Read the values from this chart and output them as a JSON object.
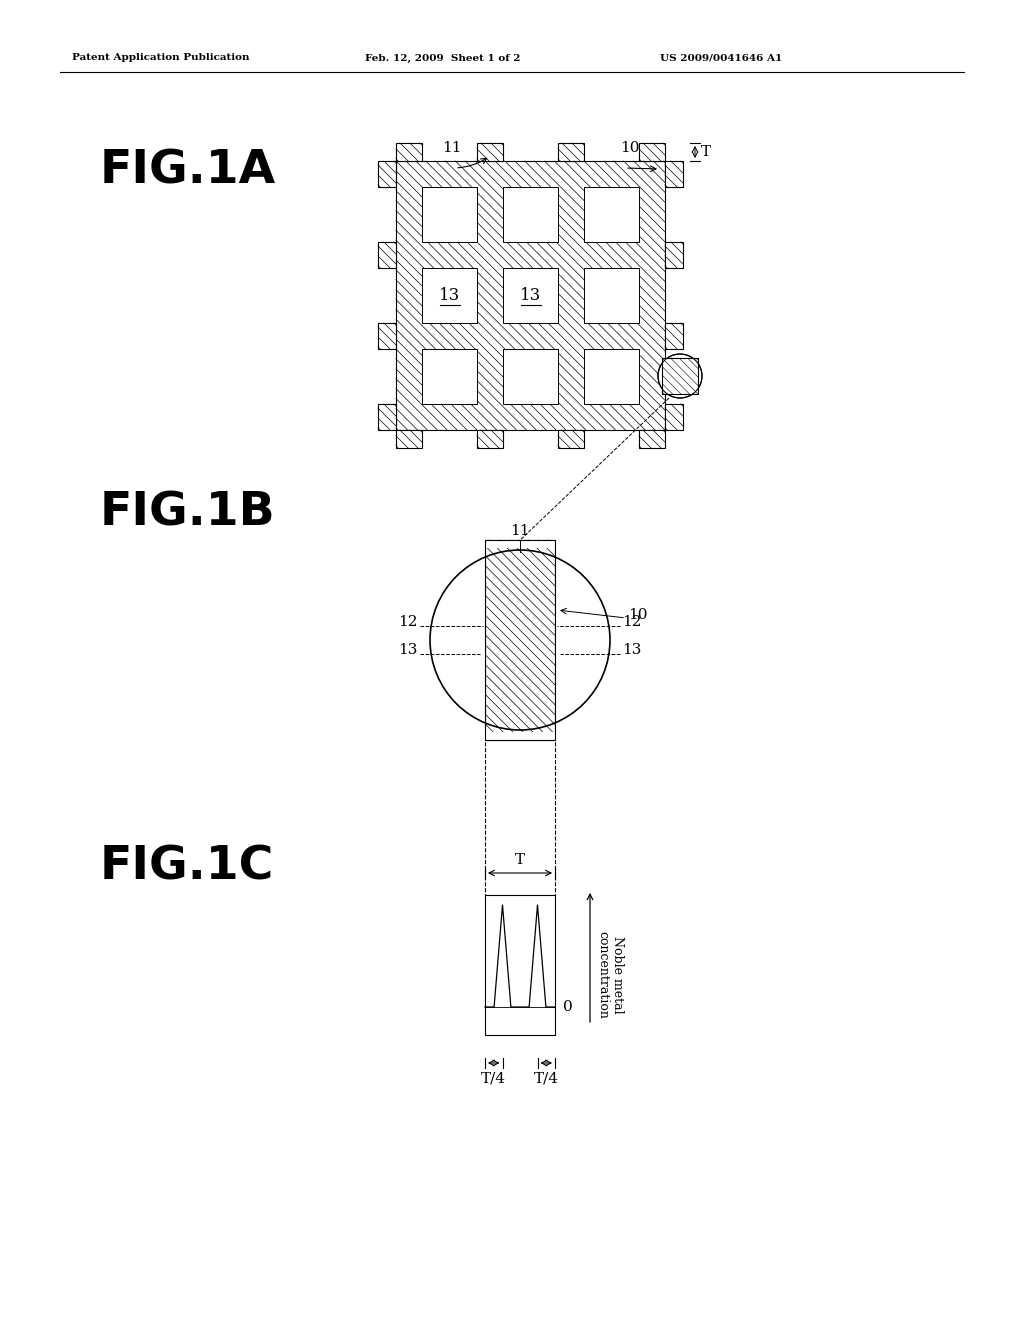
{
  "bg_color": "#ffffff",
  "header_text": "Patent Application Publication",
  "header_date": "Feb. 12, 2009  Sheet 1 of 2",
  "header_patent": "US 2009/0041646 A1"
}
